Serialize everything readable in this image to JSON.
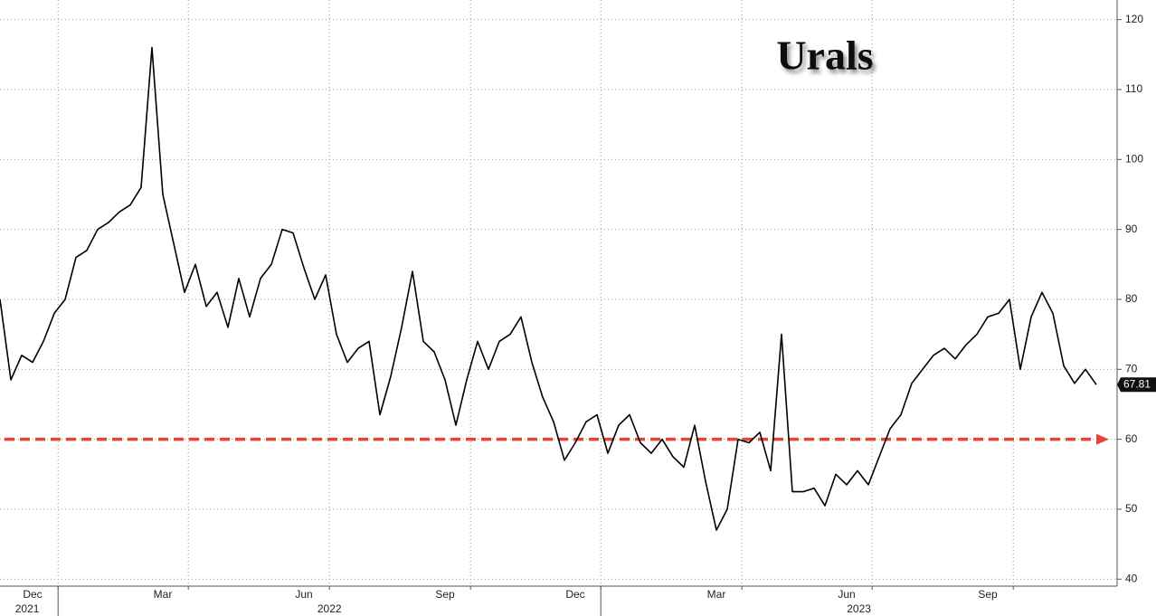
{
  "chart_data": {
    "type": "line",
    "title": "Urals",
    "categories": [
      null,
      null,
      null,
      "Dec",
      null,
      null,
      null,
      null,
      null,
      null,
      null,
      null,
      null,
      null,
      null,
      "Mar",
      null,
      null,
      null,
      null,
      null,
      null,
      null,
      null,
      null,
      null,
      null,
      null,
      "Jun",
      null,
      null,
      null,
      null,
      null,
      null,
      null,
      null,
      null,
      null,
      null,
      null,
      "Sep",
      null,
      null,
      null,
      null,
      null,
      null,
      null,
      null,
      null,
      null,
      null,
      "Dec",
      null,
      null,
      null,
      null,
      null,
      null,
      null,
      null,
      null,
      null,
      null,
      null,
      "Mar",
      null,
      null,
      null,
      null,
      null,
      null,
      null,
      null,
      null,
      null,
      null,
      "Jun",
      null,
      null,
      null,
      null,
      null,
      null,
      null,
      null,
      null,
      null,
      null,
      null,
      "Sep",
      null,
      null,
      null,
      null,
      null,
      null,
      null,
      null,
      null,
      null
    ],
    "x_groups": [
      "2021",
      "2022",
      "2023"
    ],
    "values": [
      80,
      68.5,
      72,
      71,
      74,
      78,
      80,
      86,
      87,
      90,
      91,
      92.5,
      93.5,
      96,
      116,
      95,
      88,
      81,
      85,
      79,
      81,
      76,
      83,
      77.5,
      83,
      85,
      90,
      89.5,
      84.5,
      80,
      83.5,
      75,
      71,
      73,
      74,
      63.5,
      69,
      76,
      84,
      74,
      72.5,
      68.5,
      62,
      68.5,
      74,
      70,
      74,
      75,
      77.5,
      71,
      66,
      62.5,
      57,
      59.5,
      62.5,
      63.5,
      58,
      62,
      63.5,
      59.5,
      58,
      60,
      57.5,
      56,
      62,
      54,
      47,
      50,
      60,
      59.5,
      61,
      55.5,
      75,
      52.5,
      52.5,
      53,
      50.5,
      55,
      53.5,
      55.5,
      53.5,
      57.5,
      61.5,
      63.5,
      68,
      70,
      72,
      73,
      71.5,
      73.5,
      75,
      77.5,
      78,
      80,
      70,
      77.5,
      81,
      78,
      70.5,
      68,
      70,
      67.81
    ],
    "color": "#000000",
    "ylim": [
      39,
      122.8
    ],
    "yticks": [
      40,
      50,
      60,
      70,
      80,
      90,
      100,
      110,
      120
    ],
    "grid": true,
    "reference_line": {
      "value": 60,
      "color": "#e8423a"
    }
  }
}
